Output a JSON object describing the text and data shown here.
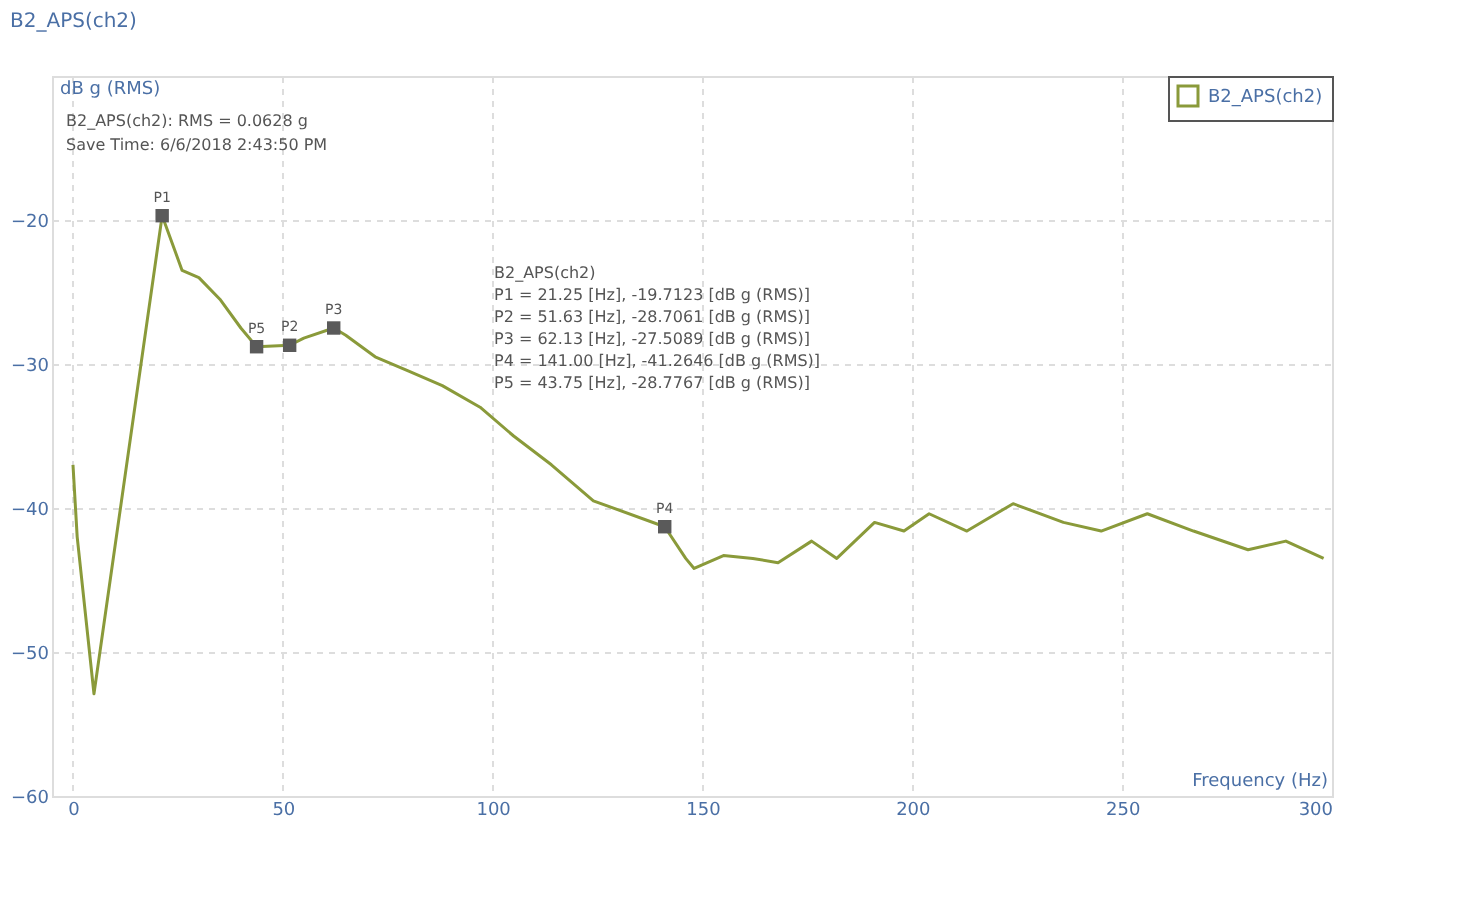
{
  "chart_data": {
    "type": "line",
    "title": "B2_APS(ch2)",
    "xlabel": "Frequency (Hz)",
    "ylabel": "dB g (RMS)",
    "x": [
      0,
      1,
      5,
      21.25,
      26,
      30,
      35,
      40,
      43.75,
      51.63,
      55,
      62.13,
      65,
      72,
      80,
      88,
      97,
      105,
      114,
      124,
      141,
      146,
      148,
      155,
      162,
      168,
      176,
      182,
      191,
      198,
      204,
      213,
      224,
      236,
      245,
      256,
      267,
      280,
      289,
      298
    ],
    "series": [
      {
        "name": "B2_APS(ch2)",
        "color": "#8a9a3a",
        "values": [
          -37,
          -42,
          -52.9,
          -19.7,
          -23.5,
          -24,
          -25.5,
          -27.5,
          -28.8,
          -28.7,
          -28.2,
          -27.5,
          -28,
          -29.5,
          -30.5,
          -31.5,
          -33,
          -35,
          -37,
          -39.5,
          -41.3,
          -43.5,
          -44.2,
          -43.3,
          -43.5,
          -43.8,
          -42.3,
          -43.5,
          -41,
          -41.6,
          -40.4,
          -41.6,
          -39.7,
          -41,
          -41.6,
          -40.4,
          -41.6,
          -42.9,
          -42.3,
          -43.5
        ]
      },
      {
        "type": "scatter",
        "marker": "square",
        "color": "#5a5a5a",
        "x": [
          21.25,
          51.63,
          62.13,
          141.0,
          43.75
        ],
        "values": [
          -19.7,
          -28.7,
          -27.5,
          -41.3,
          -28.8
        ]
      }
    ],
    "xlim": [
      -5,
      300
    ],
    "xticks": [
      0,
      50,
      100,
      150,
      200,
      250,
      300
    ],
    "ylim": [
      -60,
      -10
    ],
    "yticks": [
      -20,
      -30,
      -40,
      -50,
      -60
    ],
    "grid": true,
    "legend": "top right",
    "annotations": [
      "B2_APS(ch2): RMS = 0.0628 g",
      "Save Time: 6/6/2018 2:43:50 PM",
      "B2_APS(ch2)",
      "P1 = 21.25 [Hz], -19.7123 [dB g (RMS)]",
      "P2 = 51.63 [Hz], -28.7061 [dB g (RMS)]",
      "P3 = 62.13 [Hz], -27.5089 [dB g (RMS)]",
      "P4 = 141.00 [Hz], -41.2646 [dB g (RMS)]",
      "P5 = 43.75 [Hz], -28.7767 [dB g (RMS)]",
      {
        "text": "P1",
        "x": 21.25,
        "y": -19.7
      },
      {
        "text": "P2",
        "x": 51.63,
        "y": -28.7
      },
      {
        "text": "P3",
        "x": 62.13,
        "y": -27.5
      },
      {
        "text": "P4",
        "x": 141.0,
        "y": -41.3
      },
      {
        "text": "P5",
        "x": 43.75,
        "y": -28.8
      }
    ]
  }
}
